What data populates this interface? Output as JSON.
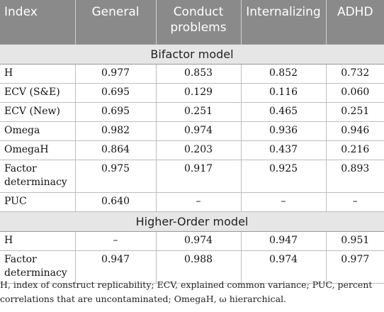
{
  "headers": [
    "Index",
    "General",
    "Conduct problems",
    "Internalizing",
    "ADHD"
  ],
  "sections": [
    {
      "title": "Bifactor model",
      "rows": [
        {
          "label": "H",
          "values": [
            "0.977",
            "0.853",
            "0.852",
            "0.732"
          ]
        },
        {
          "label": "ECV (S&E)",
          "values": [
            "0.695",
            "0.129",
            "0.116",
            "0.060"
          ]
        },
        {
          "label": "ECV (New)",
          "values": [
            "0.695",
            "0.251",
            "0.465",
            "0.251"
          ]
        },
        {
          "label": "Omega",
          "values": [
            "0.982",
            "0.974",
            "0.936",
            "0.946"
          ]
        },
        {
          "label": "OmegaH",
          "values": [
            "0.864",
            "0.203",
            "0.437",
            "0.216"
          ]
        },
        {
          "label": "Factor determinacy",
          "values": [
            "0.975",
            "0.917",
            "0.925",
            "0.893"
          ]
        },
        {
          "label": "PUC",
          "values": [
            "0.640",
            "–",
            "–",
            "–"
          ]
        }
      ]
    },
    {
      "title": "Higher-Order model",
      "rows": [
        {
          "label": "H",
          "values": [
            "–",
            "0.974",
            "0.947",
            "0.951"
          ]
        },
        {
          "label": "Factor determinacy",
          "values": [
            "0.947",
            "0.988",
            "0.974",
            "0.977"
          ]
        }
      ]
    }
  ],
  "footnote": "H, index of construct replicability; ECV, explained common variance; PUC, percent correlations that are uncontaminated; OmegaH, ω hierarchical."
}
